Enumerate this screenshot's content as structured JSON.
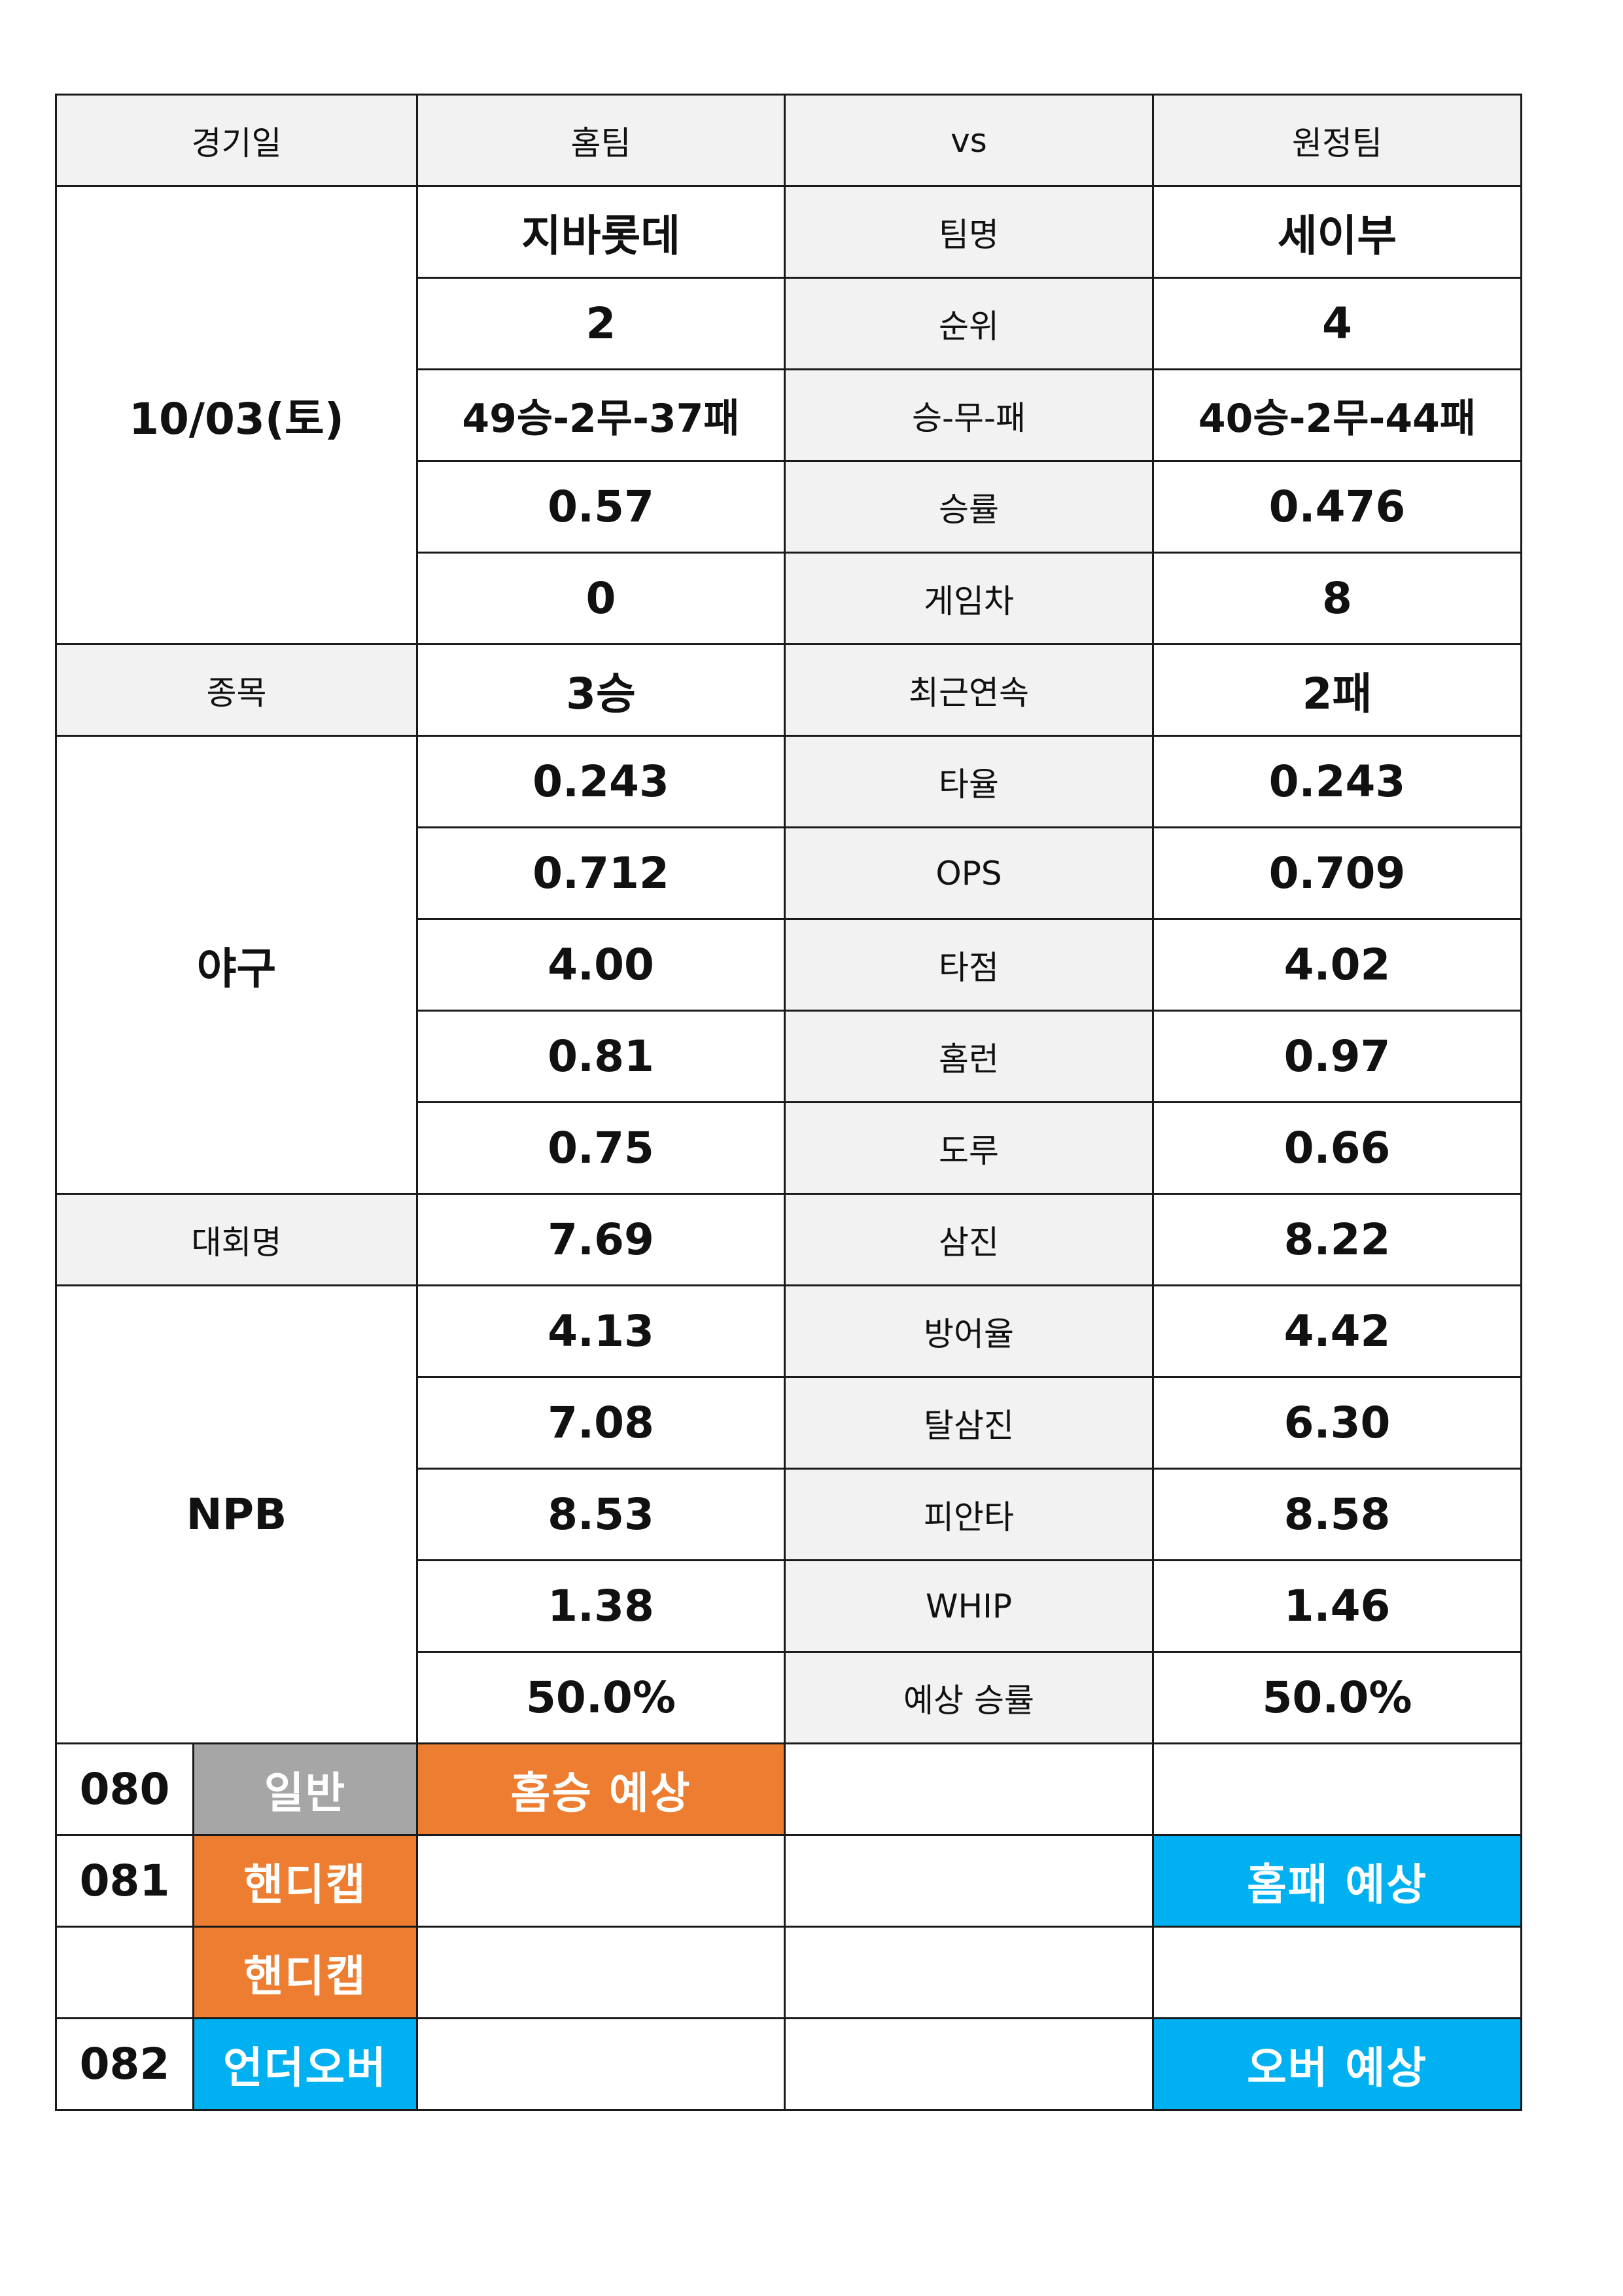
{
  "header": {
    "date": "경기일",
    "home": "홈팀",
    "vs": "vs",
    "away": "원정팀"
  },
  "match": {
    "date_value": "10/03(토)"
  },
  "stats_top": [
    {
      "label": "팀명",
      "home": "지바롯데",
      "away": "세이부"
    },
    {
      "label": "순위",
      "home": "2",
      "away": "4"
    },
    {
      "label": "승-무-패",
      "home": "49승-2무-37패",
      "away": "40승-2무-44패"
    },
    {
      "label": "승률",
      "home": "0.57",
      "away": "0.476"
    },
    {
      "label": "게임차",
      "home": "0",
      "away": "8"
    }
  ],
  "sport": {
    "label": "종목",
    "value": "야구"
  },
  "streak": {
    "label": "최근연속",
    "home": "3승",
    "away": "2패"
  },
  "batting": [
    {
      "label": "타율",
      "home": "0.243",
      "away": "0.243"
    },
    {
      "label": "OPS",
      "home": "0.712",
      "away": "0.709"
    },
    {
      "label": "타점",
      "home": "4.00",
      "away": "4.02"
    },
    {
      "label": "홈런",
      "home": "0.81",
      "away": "0.97"
    },
    {
      "label": "도루",
      "home": "0.75",
      "away": "0.66"
    }
  ],
  "league": {
    "label": "대회명",
    "value": "NPB"
  },
  "strikeout": {
    "label": "삼진",
    "home": "7.69",
    "away": "8.22"
  },
  "pitching": [
    {
      "label": "방어율",
      "home": "4.13",
      "away": "4.42"
    },
    {
      "label": "탈삼진",
      "home": "7.08",
      "away": "6.30"
    },
    {
      "label": "피안타",
      "home": "8.53",
      "away": "8.58"
    },
    {
      "label": "WHIP",
      "home": "1.38",
      "away": "1.46"
    },
    {
      "label": "예상 승률",
      "home": "50.0%",
      "away": "50.0%"
    }
  ],
  "picks": [
    {
      "num": "080",
      "type": "일반",
      "home_pick": "홈승 예상",
      "away_pick": ""
    },
    {
      "num": "081",
      "type": "핸디캡",
      "home_pick": "",
      "away_pick": "홈패 예상"
    },
    {
      "num": "",
      "type": "핸디캡",
      "home_pick": "",
      "away_pick": ""
    },
    {
      "num": "082",
      "type": "언더오버",
      "home_pick": "",
      "away_pick": "오버 예상"
    }
  ],
  "colors": {
    "gray": "#a6a6a6",
    "orange": "#ed7d31",
    "blue": "#00b0f0",
    "label_bg": "#f2f2f2"
  }
}
